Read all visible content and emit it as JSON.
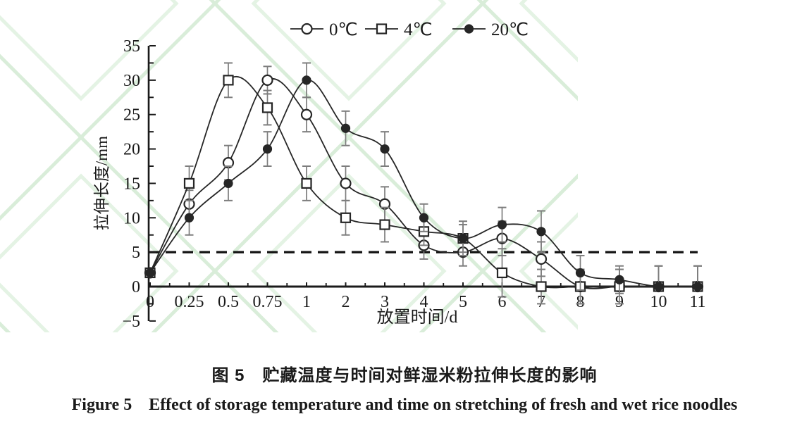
{
  "colors": {
    "line": "#262626",
    "axis": "#1a1a1a",
    "error_bar": "#7d7d7d",
    "reference_line": "#111111",
    "watermark": "#d9edd9",
    "watermark_inner": "#e4f3e4",
    "text": "#1a1a1a"
  },
  "legend": {
    "items": [
      {
        "label": "0℃",
        "marker": "open-circle"
      },
      {
        "label": "4℃",
        "marker": "open-square"
      },
      {
        "label": "20℃",
        "marker": "filled-circle"
      }
    ]
  },
  "chart_data": {
    "type": "line",
    "title": "",
    "xlabel": "放置时间/d",
    "ylabel": "拉伸长度/mm",
    "ylim": [
      -5,
      35
    ],
    "ytick_step": 5,
    "ytick_minor_step": 2.5,
    "grid": false,
    "legend_position": "top",
    "reference_line": {
      "y": 5,
      "style": "dashed"
    },
    "categories": [
      "0",
      "0.25",
      "0.5",
      "0.75",
      "1",
      "2",
      "3",
      "4",
      "5",
      "6",
      "7",
      "8",
      "9",
      "10",
      "11"
    ],
    "series": [
      {
        "name": "0℃",
        "marker": "open-circle",
        "values": [
          2,
          12,
          18,
          30,
          25,
          15,
          12,
          6,
          5,
          7,
          4,
          0,
          0,
          0,
          0
        ],
        "error_up": [
          0,
          2,
          2.5,
          2,
          2.5,
          2.5,
          2.5,
          2,
          2,
          2.5,
          2.5,
          2.5,
          2.5,
          3,
          3
        ],
        "error_down": [
          0,
          2,
          2.5,
          2,
          2.5,
          2.5,
          2.5,
          2,
          2,
          2.5,
          2.5,
          2.5,
          2.5,
          0,
          0
        ]
      },
      {
        "name": "4℃",
        "marker": "open-square",
        "values": [
          2,
          15,
          30,
          26,
          15,
          10,
          9,
          8,
          7,
          2,
          0,
          0,
          0,
          0,
          0
        ],
        "error_up": [
          0,
          2.5,
          2.5,
          2.5,
          2.5,
          2.5,
          2.5,
          2,
          2.5,
          3.5,
          2.5,
          2.5,
          2.5,
          3,
          3
        ],
        "error_down": [
          0,
          2.5,
          2.5,
          2.5,
          2.5,
          2.5,
          2.5,
          2,
          2.5,
          3.5,
          2.5,
          0,
          0,
          0,
          0
        ]
      },
      {
        "name": "20℃",
        "marker": "filled-circle",
        "values": [
          2,
          10,
          15,
          20,
          30,
          23,
          20,
          10,
          7,
          9,
          8,
          2,
          1,
          0,
          0
        ],
        "error_up": [
          0,
          2.5,
          2.5,
          2.5,
          2.5,
          2.5,
          2.5,
          2,
          2,
          2.5,
          3,
          2.5,
          2,
          3,
          3
        ],
        "error_down": [
          0,
          2.5,
          2.5,
          2.5,
          2.5,
          2.5,
          2.5,
          2,
          2,
          2.5,
          3,
          2.5,
          2,
          0,
          0
        ]
      }
    ]
  },
  "caption": {
    "zh": "图 5　贮藏温度与时间对鲜湿米粉拉伸长度的影响",
    "en": "Figure 5　Effect of storage temperature and time on stretching of fresh and wet rice noodles"
  }
}
